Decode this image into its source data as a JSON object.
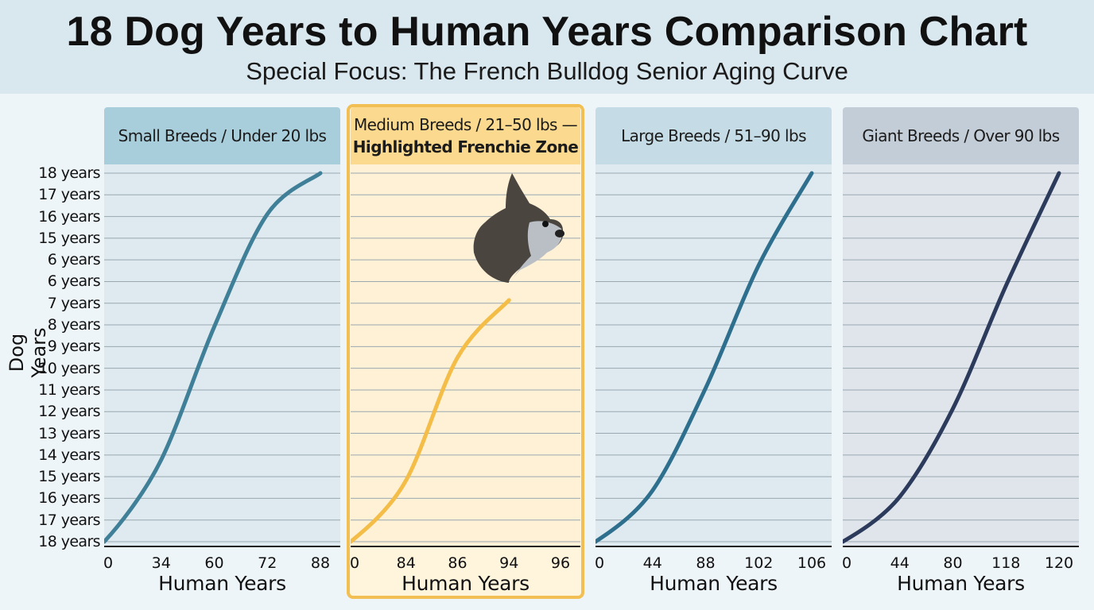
{
  "header": {
    "title": "18 Dog Years to Human Years Comparison Chart",
    "subtitle": "Special Focus: The French Bulldog Senior Aging Curve"
  },
  "colors": {
    "header_bg": "#d9e7ee",
    "small_panel_bg": "#deeaef",
    "small_head_bg": "#a9cedb",
    "medium_panel_bg": "#fff1d6",
    "medium_head_bg": "#fbd98e",
    "medium_border": "#f1bf53",
    "large_panel_bg": "#deeaf0",
    "large_head_bg": "#c5dce6",
    "giant_panel_bg": "#e0e5ec",
    "giant_head_bg": "#c3cdd8",
    "small_curve": "#3f7f97",
    "medium_curve": "#f3bd47",
    "large_curve": "#2f6f8e",
    "giant_curve": "#2c3b5c"
  },
  "icons": {
    "frenchie": "french-bulldog-head-icon"
  },
  "chart_data": {
    "type": "line",
    "ylabel": "Dog Years",
    "y_tick_labels": [
      "18 years",
      "17 years",
      "16 years",
      "15 years",
      "6 years",
      "6 years",
      "7 years",
      "8 years",
      "9 years",
      "10 years",
      "11 years",
      "12 years",
      "13 years",
      "14 years",
      "15 years",
      "16 years",
      "17 years",
      "18 years"
    ],
    "grid": true,
    "panels": [
      {
        "title": "Small Breeds / Under 20 lbs",
        "subtitle": "",
        "xlabel": "Human Years",
        "x_tick_labels": [
          "0",
          "34",
          "60",
          "72",
          "88"
        ],
        "series": [
          {
            "x": [
              0,
              34,
              60,
              72,
              88
            ],
            "y": [
              0,
              4,
              10.5,
              16,
              18
            ]
          }
        ]
      },
      {
        "title": "Medium Breeds / 21–50 lbs —",
        "subtitle": "Highlighted Frenchie Zone",
        "xlabel": "Human Years",
        "x_tick_labels": [
          "0",
          "84",
          "86",
          "94",
          "96"
        ],
        "series": [
          {
            "x": [
              0,
              84,
              86,
              94
            ],
            "y": [
              0,
              3,
              9,
              11.8
            ]
          }
        ]
      },
      {
        "title": "Large Breeds / 51–90 lbs",
        "subtitle": "",
        "xlabel": "Human Years",
        "x_tick_labels": [
          "0",
          "44",
          "88",
          "102",
          "106"
        ],
        "series": [
          {
            "x": [
              0,
              44,
              88,
              102,
              106
            ],
            "y": [
              0,
              2.5,
              7.5,
              13.5,
              18
            ]
          }
        ]
      },
      {
        "title": "Giant Breeds / Over 90 lbs",
        "subtitle": "",
        "xlabel": "Human Years",
        "x_tick_labels": [
          "0",
          "44",
          "80",
          "118",
          "120"
        ],
        "series": [
          {
            "x": [
              0,
              44,
              80,
              118,
              120
            ],
            "y": [
              0,
              2.2,
              6.5,
              12.5,
              18
            ]
          }
        ]
      }
    ]
  }
}
